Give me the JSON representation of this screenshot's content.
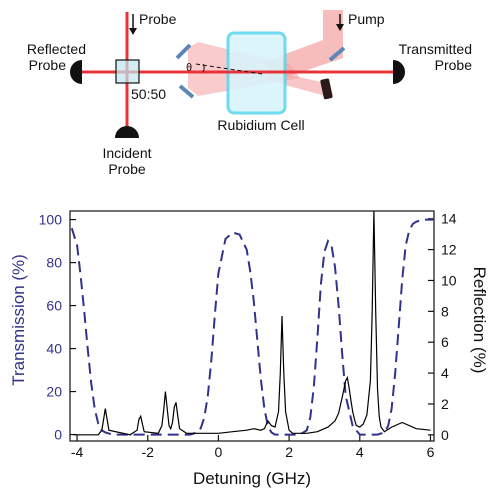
{
  "schematic": {
    "labels": {
      "probe": "Probe",
      "pump": "Pump",
      "reflected_line1": "Reflected",
      "reflected_line2": "Probe",
      "transmitted_line1": "Transmitted",
      "transmitted_line2": "Probe",
      "incident_line1": "Incident",
      "incident_line2": "Probe",
      "beamsplitter": "50:50",
      "cell": "Rubidium Cell",
      "angle": "θ"
    },
    "colors": {
      "beam": "#e8333a",
      "pump_beam": "#f4a0a0",
      "cell_fill": "#d9f4fb",
      "cell_stroke": "#5fd8ee",
      "mirror": "#5b86b8",
      "detector": "#111111"
    }
  },
  "chart_data": {
    "type": "line",
    "xlabel": "Detuning (GHz)",
    "ylabel_left": "Transmission (%)",
    "ylabel_right": "Reflection (%)",
    "xlim": [
      -4.2,
      6.1
    ],
    "ylim_left": [
      -3,
      104
    ],
    "ylim_right": [
      -0.4,
      14.5
    ],
    "xticks": [
      -4,
      -2,
      0,
      2,
      4,
      6
    ],
    "yticks_left": [
      0,
      20,
      40,
      60,
      80,
      100
    ],
    "yticks_right": [
      0,
      2,
      4,
      6,
      8,
      10,
      12,
      14
    ],
    "colors": {
      "transmission": "#32328c",
      "reflection": "#000000"
    },
    "series": [
      {
        "axis": "left",
        "style": "dashed",
        "x": [
          -4.15,
          -4.0,
          -3.9,
          -3.8,
          -3.7,
          -3.6,
          -3.5,
          -3.4,
          -3.3,
          -3.2,
          -3.0,
          -2.5,
          -2.0,
          -1.5,
          -1.0,
          -0.8,
          -0.6,
          -0.5,
          -0.4,
          -0.3,
          -0.2,
          -0.1,
          0.0,
          0.2,
          0.4,
          0.6,
          0.8,
          0.9,
          1.0,
          1.1,
          1.2,
          1.3,
          1.4,
          1.5,
          1.6,
          2.0,
          2.3,
          2.5,
          2.6,
          2.7,
          2.8,
          2.9,
          3.0,
          3.1,
          3.2,
          3.3,
          3.4,
          3.5,
          3.6,
          3.8,
          4.0,
          4.5,
          4.7,
          4.8,
          4.9,
          5.0,
          5.1,
          5.2,
          5.3,
          5.4,
          5.5,
          5.6,
          5.8,
          6.1
        ],
        "y": [
          96,
          88,
          74,
          58,
          40,
          24,
          12,
          5,
          2,
          1,
          0,
          0,
          0,
          0,
          0,
          0,
          1,
          3,
          8,
          18,
          35,
          56,
          75,
          91,
          94,
          93,
          86,
          76,
          62,
          44,
          26,
          12,
          4,
          1,
          0,
          0,
          0,
          2,
          8,
          22,
          45,
          70,
          85,
          90,
          88,
          78,
          60,
          38,
          18,
          4,
          0,
          0,
          1,
          4,
          12,
          28,
          50,
          72,
          88,
          95,
          98,
          99,
          100,
          100
        ]
      },
      {
        "axis": "right",
        "style": "solid",
        "x": [
          -4.1,
          -3.4,
          -3.3,
          -3.25,
          -3.2,
          -3.15,
          -3.1,
          -2.5,
          -2.3,
          -2.25,
          -2.2,
          -2.15,
          -2.1,
          -1.7,
          -1.6,
          -1.55,
          -1.5,
          -1.45,
          -1.4,
          -1.35,
          -1.3,
          -1.25,
          -1.2,
          -1.15,
          -1.1,
          -0.9,
          -0.6,
          -0.4,
          0.0,
          0.4,
          0.8,
          1.0,
          1.2,
          1.3,
          1.4,
          1.5,
          1.6,
          1.7,
          1.75,
          1.8,
          1.85,
          1.9,
          2.0,
          2.1,
          2.3,
          2.5,
          2.8,
          3.1,
          3.3,
          3.4,
          3.5,
          3.6,
          3.65,
          3.7,
          3.75,
          3.8,
          3.85,
          3.9,
          4.0,
          4.1,
          4.2,
          4.3,
          4.35,
          4.4,
          4.45,
          4.5,
          4.55,
          4.6,
          4.7,
          4.9,
          5.2,
          5.6,
          6.0
        ],
        "y": [
          0,
          0,
          0.3,
          1,
          1.7,
          1.0,
          0.3,
          0,
          0.3,
          1.0,
          1.2,
          0.7,
          0.2,
          0.1,
          0.6,
          1.6,
          2.8,
          1.7,
          0.6,
          0.4,
          0.8,
          1.8,
          2.1,
          1.2,
          0.4,
          0.1,
          0.1,
          0.1,
          0.1,
          0.2,
          0.3,
          0.4,
          0.3,
          0.4,
          0.9,
          0.6,
          0.5,
          1.5,
          4.0,
          7.7,
          4.0,
          1.5,
          0.3,
          0.1,
          0.1,
          0.1,
          0.2,
          0.5,
          0.9,
          1.4,
          2.4,
          3.5,
          3.7,
          3.0,
          2.2,
          1.5,
          1.0,
          0.6,
          0.5,
          0.7,
          1.3,
          3.5,
          8.0,
          14.5,
          8.0,
          3.0,
          1.2,
          0.5,
          0.2,
          0.5,
          0.8,
          0.4,
          0.3
        ]
      }
    ]
  }
}
